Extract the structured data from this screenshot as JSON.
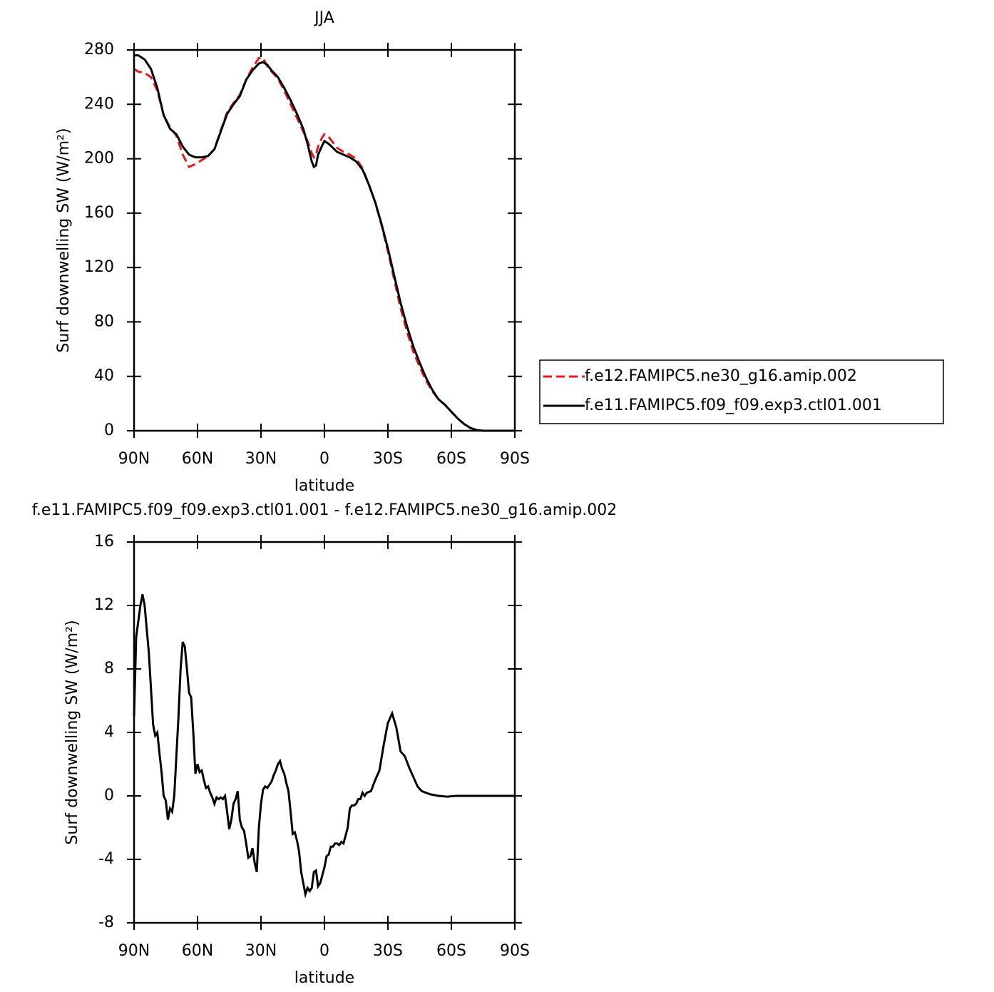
{
  "chart_data": [
    {
      "type": "line",
      "title": "JJA",
      "xlabel": "latitude",
      "ylabel": "Surf downwelling SW (W/m²)",
      "x": [
        90,
        88,
        85,
        82,
        79,
        76,
        73,
        70,
        67,
        64,
        61,
        58,
        55,
        52,
        49,
        46,
        43,
        40,
        37,
        34,
        31,
        29,
        27,
        25,
        22,
        19,
        16,
        13,
        10,
        8,
        6,
        5,
        4,
        3,
        1,
        0,
        -2,
        -4,
        -6,
        -9,
        -12,
        -15,
        -18,
        -21,
        -24,
        -27,
        -30,
        -33,
        -36,
        -39,
        -42,
        -45,
        -48,
        -51,
        -54,
        -57,
        -60,
        -63,
        -66,
        -69,
        -72,
        -75,
        -90
      ],
      "series": [
        {
          "name": "f.e12.FAMIPC5.ne30_g16.amip.002",
          "color": "#e41a1c",
          "linestyle": "dashed",
          "values": [
            266,
            264,
            263,
            260,
            250,
            232,
            223,
            217,
            203,
            194,
            196,
            199,
            202,
            207,
            221,
            234,
            241,
            247,
            258,
            267,
            274,
            274,
            268,
            264,
            259,
            250,
            240,
            230,
            220,
            213,
            204,
            201,
            203,
            209,
            216,
            218,
            216,
            212,
            208,
            205,
            203,
            200,
            193,
            181,
            168,
            151,
            132,
            111,
            90,
            73,
            58,
            47,
            37,
            29,
            23,
            19,
            14,
            9,
            5,
            2,
            0.5,
            0,
            0
          ]
        },
        {
          "name": "f.e11.FAMIPC5.f09_f09.exp3.ctl01.001",
          "color": "#000000",
          "linestyle": "solid",
          "values": [
            276,
            276,
            273,
            266,
            252,
            232,
            222,
            218,
            209,
            203,
            201,
            201,
            202,
            207,
            220,
            233,
            240,
            246,
            258,
            265,
            270,
            271,
            269,
            265,
            260,
            252,
            243,
            233,
            222,
            211,
            198,
            194,
            195,
            203,
            210,
            213,
            211,
            208,
            205,
            203,
            201,
            198,
            192,
            181,
            168,
            152,
            134,
            114,
            94,
            77,
            62,
            50,
            39,
            30,
            23,
            19,
            14,
            9,
            5,
            2,
            0.5,
            0,
            0
          ]
        }
      ],
      "xlim": [
        90,
        -90
      ],
      "xticks": [
        {
          "value": 90,
          "label": "90N"
        },
        {
          "value": 60,
          "label": "60N"
        },
        {
          "value": 30,
          "label": "30N"
        },
        0,
        {
          "value": -30,
          "label": "30S"
        },
        {
          "value": -60,
          "label": "60S"
        },
        {
          "value": -90,
          "label": "90S"
        }
      ],
      "ylim": [
        0,
        280
      ],
      "yticks": [
        0,
        40,
        80,
        120,
        160,
        200,
        240,
        280
      ],
      "legend": "right"
    },
    {
      "type": "line",
      "title": "f.e11.FAMIPC5.f09_f09.exp3.ctl01.001 - f.e12.FAMIPC5.ne30_g16.amip.002",
      "xlabel": "latitude",
      "ylabel": "Surf downwelling SW (W/m²)",
      "x": [
        90,
        89,
        87,
        86,
        85,
        83,
        81,
        80,
        79,
        78,
        77,
        76,
        75,
        74,
        73,
        72,
        71,
        70,
        69,
        68,
        67,
        66,
        65,
        64,
        63,
        62,
        61,
        60,
        59,
        58,
        57,
        56,
        55,
        54,
        53,
        52,
        51,
        50,
        49,
        48,
        47,
        46,
        45,
        44,
        43,
        42,
        41,
        40,
        39,
        38,
        37,
        36,
        35,
        34,
        33,
        32,
        31,
        30,
        29,
        28,
        27,
        26,
        25,
        24,
        23,
        22,
        21,
        20,
        19,
        18,
        17,
        16,
        15,
        14,
        13,
        12,
        11,
        10,
        9,
        8,
        7,
        6,
        5,
        4,
        3,
        2,
        1,
        0,
        -1,
        -2,
        -3,
        -4,
        -5,
        -6,
        -7,
        -8,
        -9,
        -10,
        -11,
        -12,
        -13,
        -14,
        -15,
        -16,
        -17,
        -18,
        -19,
        -20,
        -22,
        -24,
        -26,
        -28,
        -30,
        -32,
        -34,
        -36,
        -38,
        -40,
        -42,
        -44,
        -46,
        -48,
        -50,
        -54,
        -58,
        -62,
        -90
      ],
      "series": [
        {
          "color": "#000000",
          "linestyle": "solid",
          "values": [
            5,
            10,
            12,
            12.7,
            12,
            9,
            4.5,
            3.8,
            4,
            2.7,
            1.5,
            0,
            -0.3,
            -1.5,
            -0.8,
            -1,
            0,
            2.5,
            5,
            8,
            9.7,
            9.4,
            8,
            6.5,
            6.2,
            4,
            1.4,
            2,
            1.5,
            1.6,
            1,
            0.5,
            0.6,
            0.2,
            -0.1,
            -0.5,
            -0.1,
            -0.2,
            -0.1,
            -0.2,
            0,
            -1,
            -2.1,
            -1.5,
            -0.5,
            -0.2,
            0.3,
            -1.5,
            -2,
            -2.2,
            -3,
            -3.9,
            -3.8,
            -3.3,
            -4.2,
            -4.8,
            -2,
            -0.5,
            0.4,
            0.6,
            0.5,
            0.7,
            0.9,
            1.3,
            1.6,
            2,
            2.2,
            1.7,
            1.4,
            0.8,
            0.3,
            -1,
            -2.4,
            -2.3,
            -2.8,
            -3.5,
            -4.8,
            -5.5,
            -6.2,
            -5.8,
            -6,
            -5.8,
            -4.8,
            -4.7,
            -5.7,
            -5.5,
            -5,
            -4.5,
            -3.8,
            -3.7,
            -3.2,
            -3.2,
            -3,
            -3,
            -3.1,
            -2.9,
            -3,
            -2.5,
            -2,
            -0.8,
            -0.6,
            -0.6,
            -0.5,
            -0.2,
            -0.2,
            0.2,
            0,
            0.2,
            0.3,
            1,
            1.6,
            3.2,
            4.6,
            5.2,
            4.3,
            2.8,
            2.5,
            1.8,
            1.2,
            0.6,
            0.3,
            0.2,
            0.1,
            0,
            -0.05,
            0,
            0
          ]
        }
      ],
      "xlim": [
        90,
        -90
      ],
      "xticks": [
        {
          "value": 90,
          "label": "90N"
        },
        {
          "value": 60,
          "label": "60N"
        },
        {
          "value": 30,
          "label": "30N"
        },
        0,
        {
          "value": -30,
          "label": "30S"
        },
        {
          "value": -60,
          "label": "60S"
        },
        {
          "value": -90,
          "label": "90S"
        }
      ],
      "ylim": [
        -8,
        16
      ],
      "yticks": [
        -8,
        -4,
        0,
        4,
        8,
        12,
        16
      ]
    }
  ]
}
